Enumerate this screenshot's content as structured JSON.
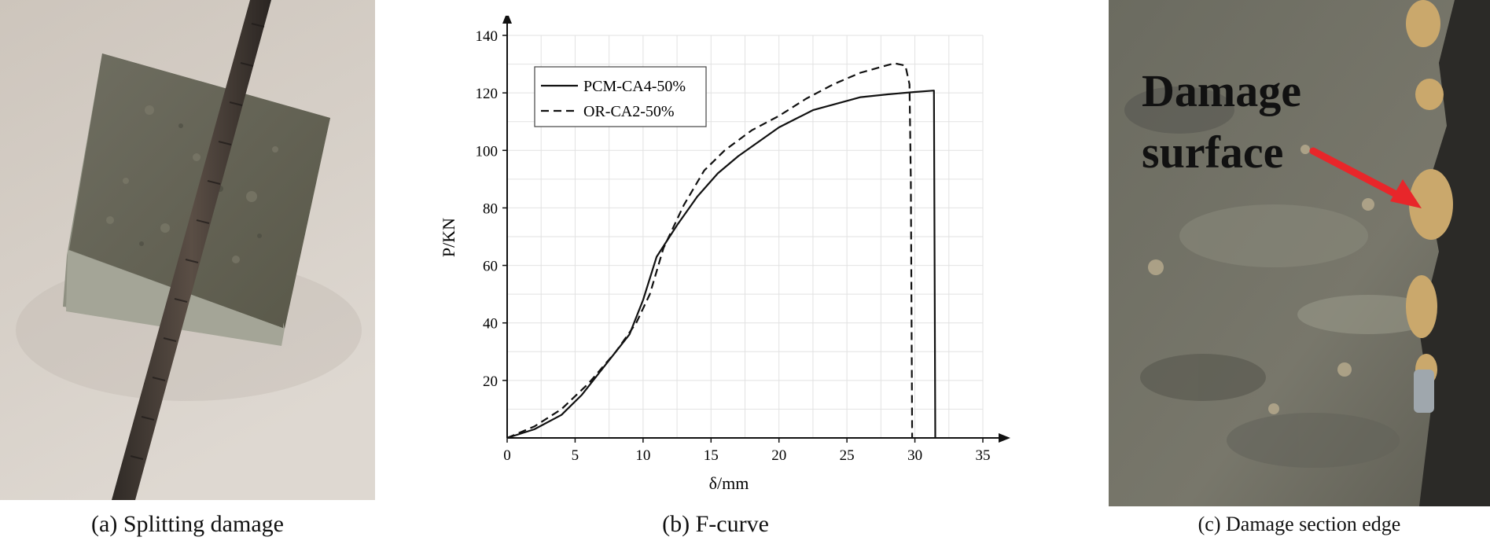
{
  "panels": {
    "a": {
      "caption": "(a) Splitting damage"
    },
    "b": {
      "caption": "(b) F-curve"
    },
    "c": {
      "caption": "(c) Damage section edge",
      "annotation_line1": "Damage",
      "annotation_line2": "surface",
      "arrow_color": "#e8262a"
    }
  },
  "chart_data": {
    "type": "line",
    "xlabel": "δ/mm",
    "ylabel": "P/KN",
    "xlim": [
      0,
      35
    ],
    "ylim": [
      0,
      140
    ],
    "x_ticks": [
      0,
      5,
      10,
      15,
      20,
      25,
      30,
      35
    ],
    "y_ticks": [
      20,
      40,
      60,
      80,
      100,
      120,
      140
    ],
    "grid": true,
    "legend_position": "top-left",
    "series": [
      {
        "name": "PCM-CA4-50%",
        "style": "solid",
        "points": [
          [
            0,
            0
          ],
          [
            2,
            3
          ],
          [
            4,
            8
          ],
          [
            5.5,
            15
          ],
          [
            7,
            24
          ],
          [
            9,
            36
          ],
          [
            10,
            48
          ],
          [
            11,
            63
          ],
          [
            12.5,
            74
          ],
          [
            14,
            84
          ],
          [
            15.5,
            92
          ],
          [
            17,
            98
          ],
          [
            20,
            108
          ],
          [
            22.5,
            114
          ],
          [
            26,
            118.5
          ],
          [
            28,
            119.5
          ],
          [
            30,
            120.3
          ],
          [
            31.4,
            120.8
          ],
          [
            31.5,
            0
          ]
        ]
      },
      {
        "name": "OR-CA2-50%",
        "style": "dashed",
        "points": [
          [
            0,
            0
          ],
          [
            2,
            4
          ],
          [
            4,
            10
          ],
          [
            6,
            19
          ],
          [
            8,
            30
          ],
          [
            9.5,
            40
          ],
          [
            10.5,
            50
          ],
          [
            11.5,
            66
          ],
          [
            13,
            81
          ],
          [
            14.5,
            93
          ],
          [
            16,
            100
          ],
          [
            18,
            107
          ],
          [
            20,
            112
          ],
          [
            22,
            118
          ],
          [
            24,
            123
          ],
          [
            26,
            127
          ],
          [
            27.5,
            129
          ],
          [
            28.5,
            130.3
          ],
          [
            29.3,
            129.5
          ],
          [
            29.6,
            123
          ],
          [
            29.7,
            90
          ],
          [
            29.8,
            0
          ]
        ]
      }
    ]
  }
}
